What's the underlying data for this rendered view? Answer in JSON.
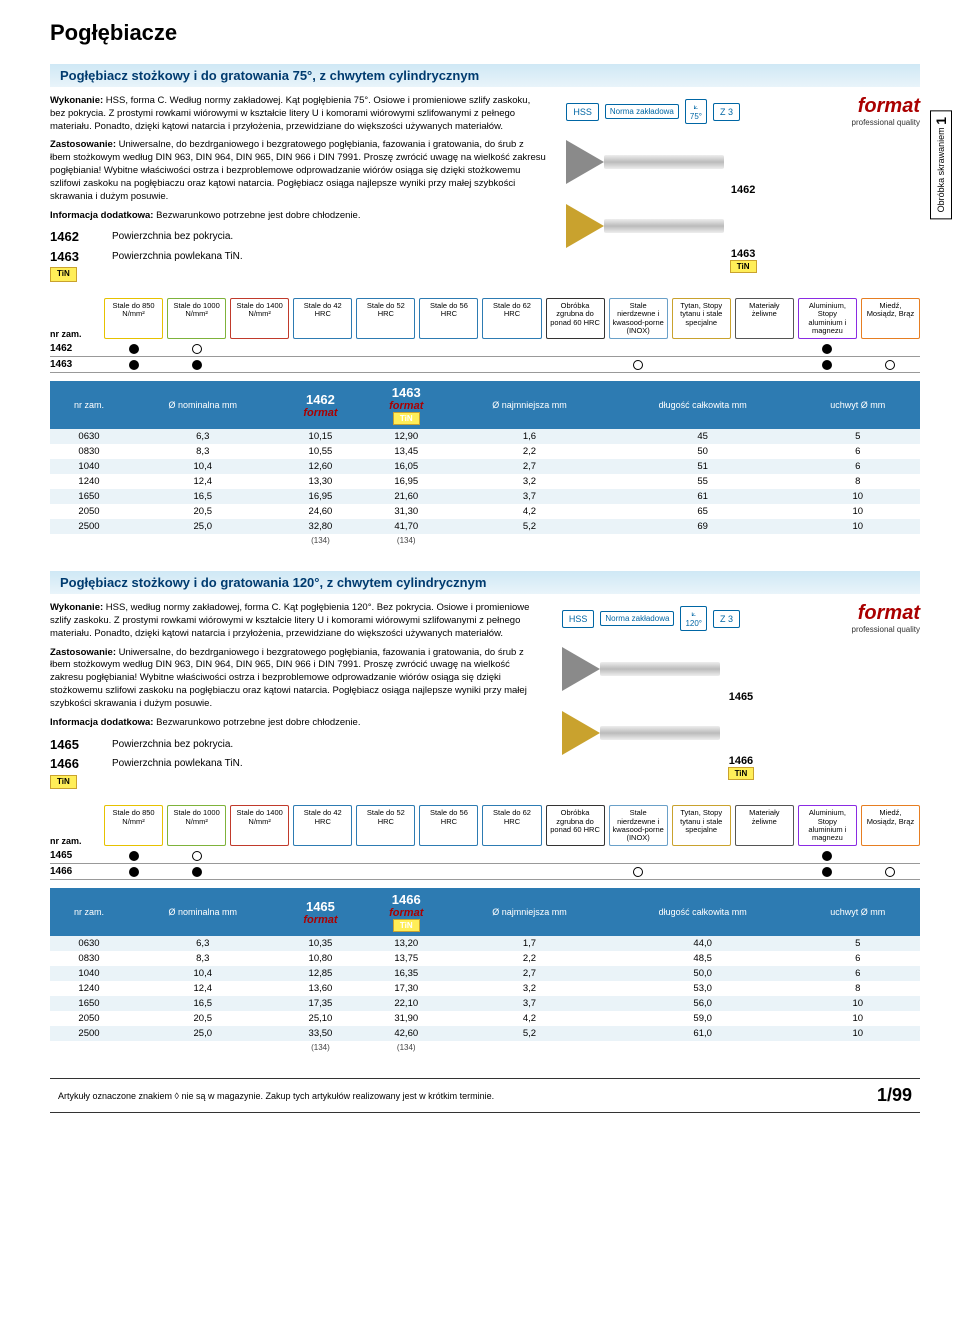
{
  "page_title": "Pogłębiacze",
  "side_tab": {
    "num": "1",
    "text": "Obróbka skrawaniem"
  },
  "footer": {
    "note": "Artykuły oznaczone znakiem ◊ nie są w magazynie. Zakup tych artykułów realizowany jest w krótkim terminie.",
    "page": "1/99"
  },
  "brand": {
    "name": "format",
    "sub": "professional quality"
  },
  "badges": {
    "hss": "HSS",
    "norma": "Norma zakładowa",
    "z3": "Z 3"
  },
  "materials": {
    "row_header": "nr zam.",
    "cols": [
      {
        "label": "Stale do 850 N/mm²",
        "color": "#e6c200"
      },
      {
        "label": "Stale do 1000 N/mm²",
        "color": "#7fb23a"
      },
      {
        "label": "Stale do 1400 N/mm²",
        "color": "#c03a2b"
      },
      {
        "label": "Stale do 42 HRC",
        "color": "#2d7bb2"
      },
      {
        "label": "Stale do 52 HRC",
        "color": "#2d7bb2"
      },
      {
        "label": "Stale do 56 HRC",
        "color": "#2d7bb2"
      },
      {
        "label": "Stale do 62 HRC",
        "color": "#2d7bb2"
      },
      {
        "label": "Obróbka zgrubna do ponad 60 HRC",
        "color": "#333"
      },
      {
        "label": "Stale nierdzewne i kwasood-porne (INOX)",
        "color": "#6aa0c8"
      },
      {
        "label": "Tytan, Stopy tytanu i stale specjalne",
        "color": "#c9a22e"
      },
      {
        "label": "Materiały żeliwne",
        "color": "#555"
      },
      {
        "label": "Aluminium, Stopy aluminium i magnezu",
        "color": "#8a2be2"
      },
      {
        "label": "Miedź, Mosiądz, Brąz",
        "color": "#e67e22"
      }
    ]
  },
  "sections": [
    {
      "title": "Pogłębiacz stożkowy i do gratowania 75°, z chwytem cylindrycznym",
      "angle_badge": "75°",
      "wykonanie": "HSS, forma C. Według normy zakładowej. Kąt pogłębienia 75°. Osiowe i promieniowe szlify zaskoku, bez pokrycia. Z prostymi rowkami wiórowymi w kształcie litery U i komorami wiórowymi szlifowanymi z pełnego materiału. Ponadto, dzięki kątowi natarcia i przyłożenia, przewidziane do większości używanych materiałów.",
      "zastosowanie": "Uniwersalne, do bezdrganiowego i bezgratowego pogłębiania, fazowania i gratowania, do śrub z łbem stożkowym według DIN 963, DIN 964, DIN 965, DIN 966 i DIN 7991. Proszę zwrócić uwagę na wielkość zakresu pogłębiania! Wybitne właściwości ostrza i bezproblemowe odprowadzanie wiórów osiąga się dzięki stożkowemu szlifowi zaskoku na pogłębiaczu oraz kątowi natarcia. Pogłębiacz osiąga najlepsze wyniki przy małej szybkości skrawania i dużym posuwie.",
      "info": "Bezwarunkowo potrzebne jest dobre chłodzenie.",
      "variants": [
        {
          "num": "1462",
          "desc": "Powierzchnia bez pokrycia.",
          "tin": false
        },
        {
          "num": "1463",
          "desc": "Powierzchnia powlekana TiN.",
          "tin": true
        }
      ],
      "mat_rows": [
        {
          "num": "1462",
          "dots": [
            "filled",
            "open",
            "",
            "",
            "",
            "",
            "",
            "",
            "",
            "",
            "",
            "filled",
            ""
          ]
        },
        {
          "num": "1463",
          "dots": [
            "filled",
            "filled",
            "",
            "",
            "",
            "",
            "",
            "",
            "open",
            "",
            "",
            "filled",
            "open"
          ]
        }
      ],
      "table": {
        "headers": {
          "nr": "nr zam.",
          "nom": "Ø nominalna mm",
          "c1_num": "1462",
          "c2_num": "1463",
          "najm": "Ø najmniejsza mm",
          "dlug": "długość całkowita mm",
          "uchwyt": "uchwyt Ø mm"
        },
        "rows": [
          [
            "0630",
            "6,3",
            "10,15",
            "12,90",
            "1,6",
            "45",
            "5"
          ],
          [
            "0830",
            "8,3",
            "10,55",
            "13,45",
            "2,2",
            "50",
            "6"
          ],
          [
            "1040",
            "10,4",
            "12,60",
            "16,05",
            "2,7",
            "51",
            "6"
          ],
          [
            "1240",
            "12,4",
            "13,30",
            "16,95",
            "3,2",
            "55",
            "8"
          ],
          [
            "1650",
            "16,5",
            "16,95",
            "21,60",
            "3,7",
            "61",
            "10"
          ],
          [
            "2050",
            "20,5",
            "24,60",
            "31,30",
            "4,2",
            "65",
            "10"
          ],
          [
            "2500",
            "25,0",
            "32,80",
            "41,70",
            "5,2",
            "69",
            "10"
          ]
        ],
        "footnote": "(134)"
      }
    },
    {
      "title": "Pogłębiacz stożkowy i do gratowania 120°, z chwytem cylindrycznym",
      "angle_badge": "120°",
      "wykonanie": "HSS, według normy zakładowej, forma C. Kąt pogłębienia 120°. Bez pokrycia. Osiowe i promieniowe szlify zaskoku. Z prostymi rowkami wiórowymi w kształcie litery U i komorami wiórowymi szlifowanymi z pełnego materiału. Ponadto, dzięki kątowi natarcia i przyłożenia, przewidziane do większości używanych materiałów.",
      "zastosowanie": "Uniwersalne, do bezdrganiowego i bezgratowego pogłębiania, fazowania i gratowania, do śrub z łbem stożkowym według DIN 963, DIN 964, DIN 965, DIN 966 i DIN 7991. Proszę zwrócić uwagę na wielkość zakresu pogłębiania! Wybitne właściwości ostrza i bezproblemowe odprowadzanie wiórów osiąga się dzięki stożkowemu szlifowi zaskoku na pogłębiaczu oraz kątowi natarcia. Pogłębiacz osiąga najlepsze wyniki przy małej szybkości skrawania i dużym posuwie.",
      "info": "Bezwarunkowo potrzebne jest dobre chłodzenie.",
      "variants": [
        {
          "num": "1465",
          "desc": "Powierzchnia bez pokrycia.",
          "tin": false
        },
        {
          "num": "1466",
          "desc": "Powierzchnia powlekana TiN.",
          "tin": true
        }
      ],
      "mat_rows": [
        {
          "num": "1465",
          "dots": [
            "filled",
            "open",
            "",
            "",
            "",
            "",
            "",
            "",
            "",
            "",
            "",
            "filled",
            ""
          ]
        },
        {
          "num": "1466",
          "dots": [
            "filled",
            "filled",
            "",
            "",
            "",
            "",
            "",
            "",
            "open",
            "",
            "",
            "filled",
            "open"
          ]
        }
      ],
      "table": {
        "headers": {
          "nr": "nr zam.",
          "nom": "Ø nominalna mm",
          "c1_num": "1465",
          "c2_num": "1466",
          "najm": "Ø najmniejsza mm",
          "dlug": "długość całkowita mm",
          "uchwyt": "uchwyt Ø mm"
        },
        "rows": [
          [
            "0630",
            "6,3",
            "10,35",
            "13,20",
            "1,7",
            "44,0",
            "5"
          ],
          [
            "0830",
            "8,3",
            "10,80",
            "13,75",
            "2,2",
            "48,5",
            "6"
          ],
          [
            "1040",
            "10,4",
            "12,85",
            "16,35",
            "2,7",
            "50,0",
            "6"
          ],
          [
            "1240",
            "12,4",
            "13,60",
            "17,30",
            "3,2",
            "53,0",
            "8"
          ],
          [
            "1650",
            "16,5",
            "17,35",
            "22,10",
            "3,7",
            "56,0",
            "10"
          ],
          [
            "2050",
            "20,5",
            "25,10",
            "31,90",
            "4,2",
            "59,0",
            "10"
          ],
          [
            "2500",
            "25,0",
            "33,50",
            "42,60",
            "5,2",
            "61,0",
            "10"
          ]
        ],
        "footnote": "(134)"
      }
    }
  ]
}
